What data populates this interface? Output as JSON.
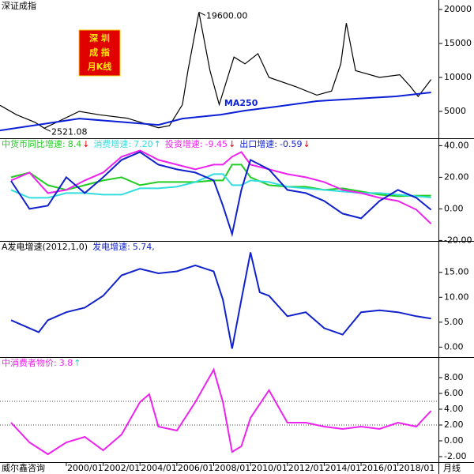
{
  "chart_data": [
    {
      "type": "line",
      "title": "深证成指",
      "badge_lines": [
        "深 圳",
        "成 指",
        "月K线"
      ],
      "x": [
        1996.4,
        1997.3,
        1998.3,
        1998.8,
        2000.7,
        2001.8,
        2003.3,
        2005.0,
        2005.6,
        2006.3,
        2006.6,
        2007.2,
        2007.8,
        2008.3,
        2009.1,
        2009.7,
        2010.4,
        2011.0,
        2012.5,
        2013.6,
        2014.4,
        2014.9,
        2015.2,
        2015.7,
        2017.0,
        2018.1,
        2018.7,
        2019.1,
        2019.8
      ],
      "xlim": [
        1996.4,
        2020.2
      ],
      "ylim": [
        1050,
        21400
      ],
      "yticks": [
        5000,
        10000,
        15000,
        20000
      ],
      "series": [
        {
          "color": "#000000",
          "values": [
            5900,
            4500,
            3400,
            2521.08,
            5000,
            4500,
            4000,
            2600,
            2900,
            6000,
            11000,
            19600,
            11000,
            6000,
            13000,
            12000,
            13500,
            10000,
            8600,
            7400,
            8000,
            12000,
            18000,
            11000,
            10000,
            10400,
            8600,
            7200,
            9700
          ]
        },
        {
          "name": "MA250",
          "color": "#0a1fd6",
          "x": [
            1996.4,
            2000.7,
            2005.0,
            2006.3,
            2008.4,
            2009.7,
            2011.4,
            2013.6,
            2015.7,
            2017.9,
            2019.8
          ],
          "values": [
            2200,
            3950,
            3020,
            3950,
            4530,
            5120,
            5700,
            6510,
            6860,
            7210,
            7790
          ]
        }
      ],
      "annotations": [
        {
          "x": 2007.2,
          "y": 19600,
          "label": "19600.00"
        },
        {
          "x": 1998.8,
          "y": 2521.08,
          "label": "2521.08"
        }
      ]
    },
    {
      "type": "line",
      "x": [
        1997,
        1998,
        1999,
        2000,
        2001,
        2002,
        2003,
        2004,
        2005,
        2006,
        2007,
        2008,
        2008.5,
        2009,
        2009.5,
        2010,
        2011,
        2012,
        2013,
        2014,
        2015,
        2016,
        2017,
        2018,
        2019,
        2019.8
      ],
      "xlim": [
        1996.4,
        2020.2
      ],
      "ylim": [
        -20.3,
        44.7
      ],
      "yticks": [
        {
          "value": -20,
          "label": "-20.00"
        },
        {
          "value": 0,
          "label": "0.00"
        },
        {
          "value": 20,
          "label": "20.00"
        },
        {
          "value": 40,
          "label": "40.00"
        }
      ],
      "series": [
        {
          "name": "中货币同比增速:",
          "latest_label": "8.4",
          "trend": "↓",
          "trend_color": "#e00000",
          "color": "#22cc22",
          "values": [
            20,
            23,
            15,
            12,
            15,
            18,
            20,
            15,
            17,
            17,
            17,
            18,
            18,
            28,
            28,
            20,
            15,
            14,
            14,
            12,
            13,
            11,
            9,
            8,
            8.4,
            8.4
          ]
        },
        {
          "name": "消费增速:",
          "latest_label": "7.20",
          "trend": "↑",
          "trend_color": "#22cccc",
          "color": "#33dddd",
          "values": [
            12,
            7,
            7,
            10,
            10,
            9,
            9,
            13,
            13,
            14,
            17,
            22,
            22,
            15,
            15,
            18,
            17,
            14,
            13,
            12,
            11,
            10,
            10,
            9,
            8,
            7.2
          ]
        },
        {
          "name": "投资增速:",
          "latest_label": "-9.45",
          "trend": "↓",
          "trend_color": "#e00000",
          "color": "#ee22ee",
          "values": [
            18,
            23,
            10,
            12,
            18,
            23,
            33,
            37,
            31,
            28,
            25,
            28,
            28,
            33,
            36,
            28,
            25,
            22,
            20,
            17,
            12,
            10,
            7,
            5,
            -0.5,
            -9.45
          ]
        },
        {
          "name": "出口增速:",
          "latest_label": "-0.59",
          "trend": "↓",
          "trend_color": "#e00000",
          "color": "#1122cc",
          "values": [
            17.7,
            0,
            2,
            20,
            10,
            20,
            31,
            36,
            28,
            25,
            23,
            18,
            2,
            -16,
            12,
            31,
            25,
            12,
            10,
            5,
            -3,
            -6,
            5,
            12,
            7,
            -0.59
          ]
        }
      ]
    },
    {
      "type": "line",
      "title": "A发电增速(2012,1,0)",
      "x": [
        1997,
        1998,
        1998.5,
        1999,
        2000,
        2001,
        2002,
        2003,
        2004,
        2005,
        2006,
        2007,
        2008,
        2008.5,
        2009,
        2009.5,
        2010,
        2010.5,
        2011,
        2012,
        2013,
        2014,
        2015,
        2016,
        2017,
        2018,
        2019,
        2019.8
      ],
      "xlim": [
        1996.4,
        2020.2
      ],
      "ylim": [
        -2,
        21.3
      ],
      "yticks": [
        {
          "value": 0,
          "label": "0.00"
        },
        {
          "value": 5,
          "label": "5.00"
        },
        {
          "value": 10,
          "label": "10.00"
        },
        {
          "value": 15,
          "label": "15.00"
        }
      ],
      "series": [
        {
          "name": "发电增速:",
          "latest_label": "5.74,",
          "color": "#1122cc",
          "values": [
            5.4,
            3.8,
            3,
            5.4,
            7,
            7.9,
            10.3,
            14.4,
            15.7,
            14.8,
            15.2,
            16.4,
            15.2,
            9.5,
            -0.3,
            9.5,
            19,
            11,
            10.3,
            6.2,
            7,
            3.8,
            2.5,
            7,
            7.4,
            7,
            6.2,
            5.74
          ]
        }
      ]
    },
    {
      "type": "line",
      "x": [
        1997,
        1998,
        1999,
        2000,
        2001,
        2002,
        2003,
        2004,
        2004.5,
        2005,
        2006,
        2007,
        2008,
        2008.5,
        2009,
        2009.5,
        2010,
        2011,
        2012,
        2013,
        2014,
        2015,
        2016,
        2017,
        2018,
        2019,
        2019.8
      ],
      "xlim": [
        1996.4,
        2020.2
      ],
      "ylim": [
        -2.7,
        10.6
      ],
      "yticks": [
        {
          "value": -2,
          "label": "-2.00"
        },
        {
          "value": 0,
          "label": "0.00"
        },
        {
          "value": 2,
          "label": "2.00"
        },
        {
          "value": 4,
          "label": "4.00"
        },
        {
          "value": 6,
          "label": "6.00"
        },
        {
          "value": 8,
          "label": "8.00"
        }
      ],
      "reference_lines": [
        2,
        5
      ],
      "xticks": [
        {
          "value": 2000,
          "label": "2000/01"
        },
        {
          "value": 2002,
          "label": "2002/01"
        },
        {
          "value": 2004,
          "label": "2004/01"
        },
        {
          "value": 2006,
          "label": "2006/01"
        },
        {
          "value": 2008,
          "label": "2008/01"
        },
        {
          "value": 2010,
          "label": "2010/01"
        },
        {
          "value": 2012,
          "label": "2012/01"
        },
        {
          "value": 2014,
          "label": "2014/01"
        },
        {
          "value": 2016,
          "label": "2016/01"
        },
        {
          "value": 2018,
          "label": "2018/01"
        }
      ],
      "series": [
        {
          "name": "中消费者物价:",
          "latest_label": "3.8",
          "trend": "↑",
          "trend_color": "#22cccc",
          "color": "#ee22ee",
          "values": [
            2.3,
            -0.2,
            -1.7,
            -0.2,
            0.5,
            -1.2,
            0.8,
            4.9,
            5.9,
            1.8,
            1.3,
            4.9,
            9,
            4.9,
            -1.4,
            -0.7,
            2.9,
            6.4,
            2.3,
            2.3,
            1.8,
            1.5,
            1.8,
            1.5,
            2.3,
            1.8,
            3.8
          ]
        }
      ]
    }
  ],
  "footer": {
    "source": "威尔鑫咨询",
    "period": "月线"
  }
}
